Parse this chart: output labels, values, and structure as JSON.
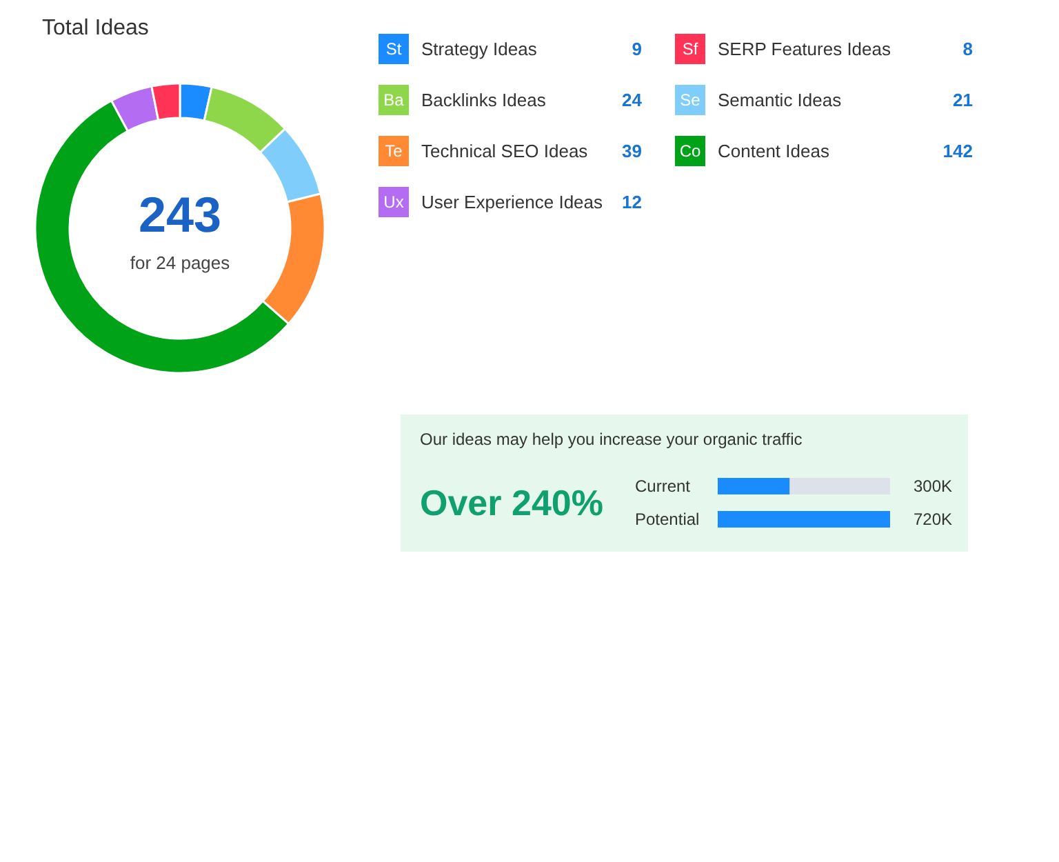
{
  "chart_data": [
    {
      "type": "donut",
      "title": "Total Ideas",
      "categories": [
        "Strategy Ideas",
        "Backlinks Ideas",
        "Semantic Ideas",
        "Technical SEO Ideas",
        "Content Ideas",
        "User Experience Ideas",
        "SERP Features Ideas"
      ],
      "values": [
        9,
        24,
        21,
        39,
        142,
        12,
        8
      ],
      "colors": [
        "#1a8cff",
        "#8ed64a",
        "#7fcdfb",
        "#ff8a33",
        "#00a318",
        "#b36cf2",
        "#ff3355"
      ],
      "data_labels": true,
      "legend": "right",
      "annotations": [
        "243",
        "for 24 pages",
        "St",
        "Ba",
        "Se",
        "Te",
        "Co",
        "Ux",
        "Sf"
      ]
    },
    {
      "type": "bar",
      "orientation": "horizontal",
      "title": "Our ideas may help you increase your organic traffic",
      "categories": [
        "Current",
        "Potential"
      ],
      "values": [
        300000,
        720000
      ],
      "color": "#1a8cff",
      "value_labels": [
        "300K",
        "720K"
      ],
      "annotations": [
        "Over 240%"
      ]
    }
  ]
}
